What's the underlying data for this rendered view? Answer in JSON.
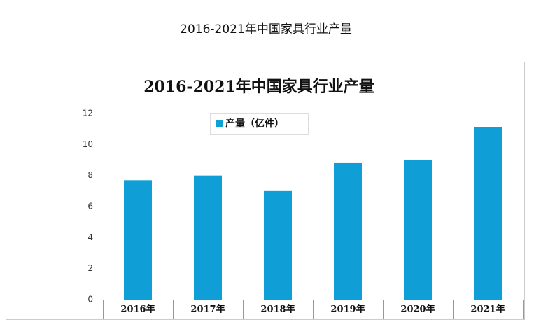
{
  "heading": "2016-2021年中国家具行业产量",
  "chart_data": {
    "type": "bar",
    "title": "2016-2021年中国家具行业产量",
    "categories": [
      "2016年",
      "2017年",
      "2018年",
      "2019年",
      "2020年",
      "2021年"
    ],
    "series": [
      {
        "name": "产量（亿件）",
        "color": "#0f9fd6",
        "values": [
          7.7,
          8.0,
          7.0,
          8.8,
          9.0,
          11.1
        ]
      }
    ],
    "ylim": [
      0,
      12
    ],
    "yticks": [
      0,
      2,
      4,
      6,
      8,
      10,
      12
    ],
    "grid": false
  }
}
